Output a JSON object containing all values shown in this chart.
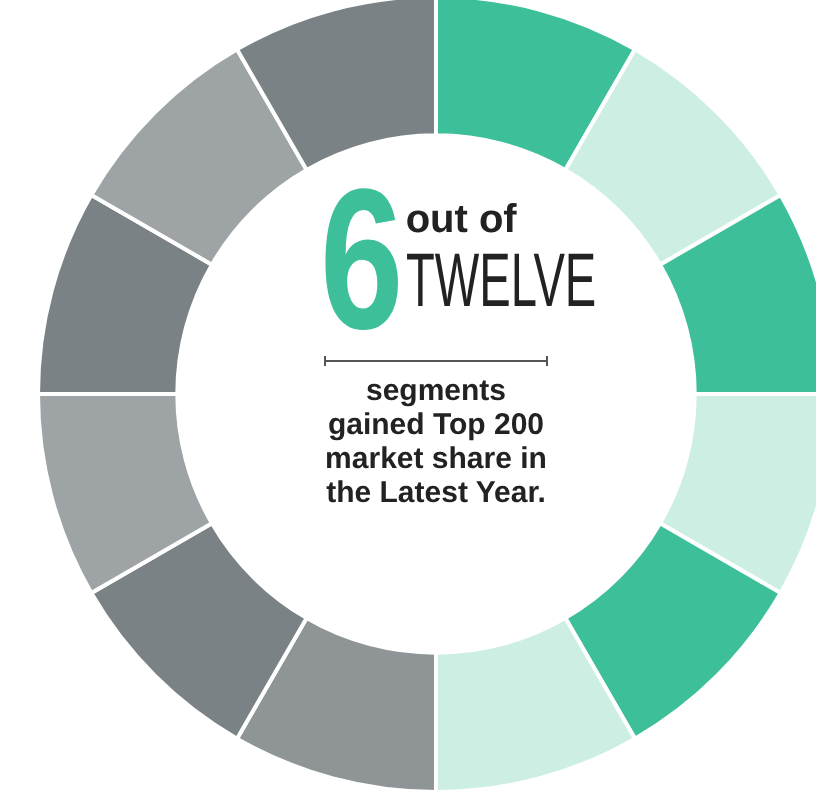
{
  "chart_data": {
    "type": "donut",
    "categories": [
      null,
      null,
      null,
      null,
      null,
      null,
      null,
      null,
      null,
      null,
      null,
      null
    ],
    "values": [
      8.33,
      8.33,
      8.33,
      8.33,
      8.33,
      8.33,
      8.33,
      8.33,
      8.33,
      8.33,
      8.33,
      8.33
    ],
    "colors": [
      "#3dbf9a",
      "#cdeee2",
      "#3dbf9a",
      "#cdeee2",
      "#3dbf9a",
      "#cdeee2",
      "#8f9597",
      "#7b8285",
      "#9ea3a6",
      "#7b8285",
      "#9ea3a6",
      "#7b8285"
    ],
    "annotations": [
      "6",
      "out of",
      "TWELVE",
      "segments gained Top 200 market share in the Latest Year."
    ]
  }
}
